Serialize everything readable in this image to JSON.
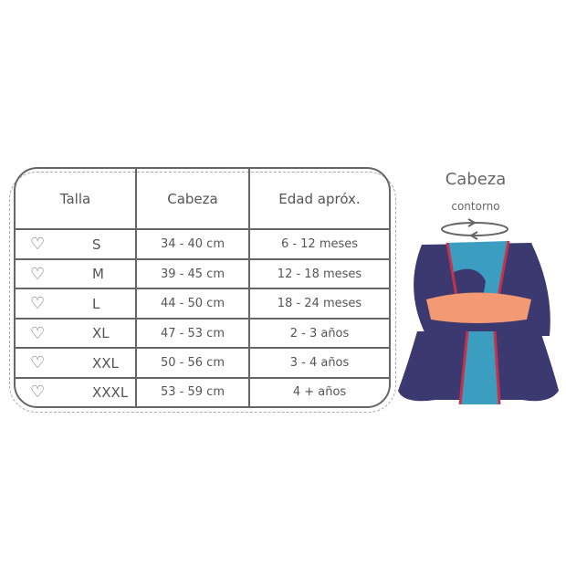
{
  "table": {
    "headers": [
      "Talla",
      "Cabeza",
      "Edad apróx."
    ],
    "rows": [
      {
        "size": "S",
        "head": "34 - 40 cm",
        "age": "6 - 12 meses"
      },
      {
        "size": "M",
        "head": "39 - 45 cm",
        "age": "12 - 18 meses"
      },
      {
        "size": "L",
        "head": "44 - 50 cm",
        "age": "18 - 24 meses"
      },
      {
        "size": "XL",
        "head": "47 - 53 cm",
        "age": "2 - 3 años"
      },
      {
        "size": "XXL",
        "head": "50 - 56 cm",
        "age": "3 - 4 años"
      },
      {
        "size": "XXXL",
        "head": "53 - 59 cm",
        "age": "4 + años"
      }
    ],
    "row_icon": "heart-outline-icon"
  },
  "side": {
    "title": "Cabeza",
    "subtitle": "contorno",
    "icon": "rotate-arrows-icon"
  },
  "colors": {
    "navy": "#3b3970",
    "teal": "#3b9dbf",
    "peach": "#f39a74",
    "seam": "#c7324a"
  }
}
